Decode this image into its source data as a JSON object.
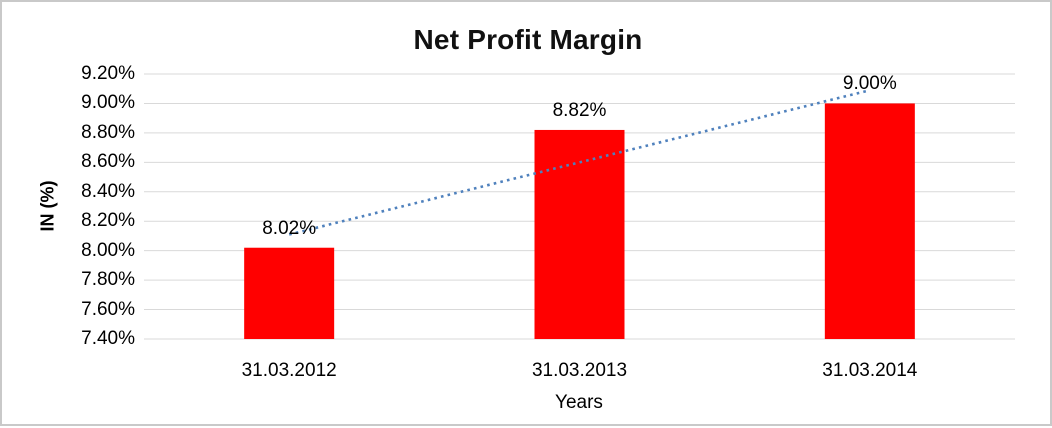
{
  "frame": {
    "border_color": "#c9c9c9",
    "background_color": "#ffffff"
  },
  "chart_data": {
    "type": "bar",
    "title": "Net Profit Margin",
    "xlabel": "Years",
    "ylabel": "IN (%)",
    "categories": [
      "31.03.2012",
      "31.03.2013",
      "31.03.2014"
    ],
    "values": [
      8.02,
      8.82,
      9.0
    ],
    "data_labels": [
      "8.02%",
      "8.82%",
      "9.00%"
    ],
    "ytick_labels": [
      "9.20%",
      "9.00%",
      "8.80%",
      "8.60%",
      "8.40%",
      "8.20%",
      "8.00%",
      "7.80%",
      "7.60%",
      "7.40%"
    ],
    "ylim": [
      7.4,
      9.2
    ],
    "ytick_step": 0.2,
    "grid": true,
    "legend": "none",
    "bar_color": "#ff0000",
    "gridline_color": "#d9d9d9",
    "text_color": "#000000",
    "trendline": {
      "type": "linear",
      "style": "dotted",
      "color": "#4f81bd"
    }
  }
}
